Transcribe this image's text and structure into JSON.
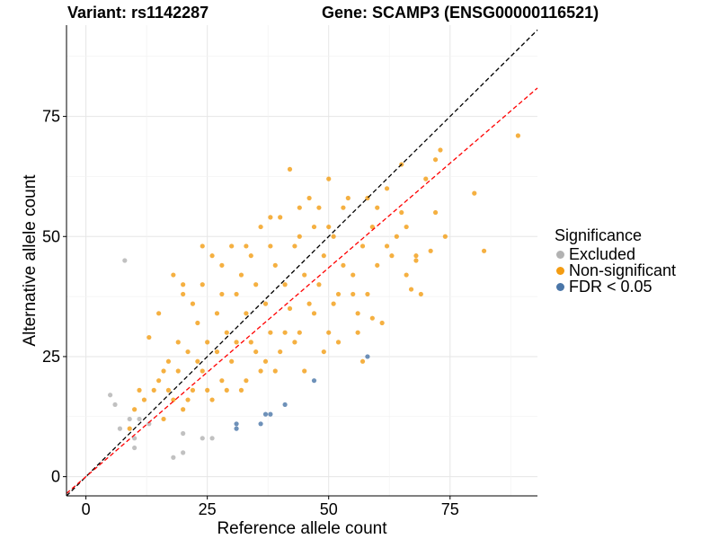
{
  "header": {
    "variant_title": "Variant: rs1142287",
    "gene_title": "Gene: SCAMP3 (ENSG00000116521)"
  },
  "legend": {
    "title": "Significance",
    "items": [
      {
        "label": "Excluded",
        "color": "#b2b2b2"
      },
      {
        "label": "Non-significant",
        "color": "#f39c12"
      },
      {
        "label": "FDR < 0.05",
        "color": "#4a76a8"
      }
    ]
  },
  "chart_data": {
    "type": "scatter",
    "title": "",
    "xlabel": "Reference allele count",
    "ylabel": "Alternative allele count",
    "xlim": [
      -4,
      93
    ],
    "ylim": [
      -4,
      94
    ],
    "xticks": [
      0,
      25,
      50,
      75
    ],
    "yticks": [
      0,
      25,
      50,
      75
    ],
    "grid": true,
    "legend_position": "right",
    "reference_lines": [
      {
        "name": "identity",
        "slope": 1,
        "intercept": 0,
        "color": "#000000",
        "style": "dashed"
      },
      {
        "name": "fit",
        "slope": 0.87,
        "intercept": 0,
        "color": "#ff0000",
        "style": "dashed"
      }
    ],
    "series": [
      {
        "name": "Excluded",
        "color": "#b2b2b2",
        "points": [
          [
            5,
            17
          ],
          [
            6,
            15
          ],
          [
            7,
            10
          ],
          [
            8,
            45
          ],
          [
            9,
            12
          ],
          [
            10,
            8
          ],
          [
            10,
            6
          ],
          [
            11,
            12
          ],
          [
            13,
            11
          ],
          [
            18,
            4
          ],
          [
            20,
            5
          ],
          [
            24,
            8
          ],
          [
            26,
            8
          ],
          [
            20,
            9
          ]
        ]
      },
      {
        "name": "FDR < 0.05",
        "color": "#4a76a8",
        "points": [
          [
            31,
            11
          ],
          [
            31,
            10
          ],
          [
            36,
            11
          ],
          [
            37,
            13
          ],
          [
            38,
            13
          ],
          [
            41,
            15
          ],
          [
            47,
            20
          ],
          [
            58,
            25
          ]
        ]
      },
      {
        "name": "Non-significant",
        "color": "#f39c12",
        "points": [
          [
            89,
            71
          ],
          [
            82,
            47
          ],
          [
            80,
            59
          ],
          [
            73,
            68
          ],
          [
            72,
            55
          ],
          [
            70,
            62
          ],
          [
            68,
            46
          ],
          [
            67,
            39
          ],
          [
            65,
            55
          ],
          [
            64,
            50
          ],
          [
            62,
            48
          ],
          [
            61,
            32
          ],
          [
            60,
            44
          ],
          [
            59,
            52
          ],
          [
            58,
            38
          ],
          [
            57,
            48
          ],
          [
            56,
            34
          ],
          [
            55,
            42
          ],
          [
            54,
            58
          ],
          [
            53,
            44
          ],
          [
            52,
            38
          ],
          [
            51,
            50
          ],
          [
            50,
            30
          ],
          [
            49,
            46
          ],
          [
            48,
            40
          ],
          [
            47,
            52
          ],
          [
            46,
            36
          ],
          [
            45,
            42
          ],
          [
            44,
            30
          ],
          [
            43,
            48
          ],
          [
            42,
            35
          ],
          [
            41,
            40
          ],
          [
            40,
            26
          ],
          [
            39,
            44
          ],
          [
            38,
            30
          ],
          [
            37,
            36
          ],
          [
            36,
            22
          ],
          [
            35,
            40
          ],
          [
            34,
            28
          ],
          [
            33,
            34
          ],
          [
            32,
            18
          ],
          [
            31,
            38
          ],
          [
            30,
            24
          ],
          [
            29,
            30
          ],
          [
            28,
            20
          ],
          [
            27,
            34
          ],
          [
            26,
            16
          ],
          [
            25,
            28
          ],
          [
            24,
            22
          ],
          [
            23,
            32
          ],
          [
            22,
            18
          ],
          [
            21,
            26
          ],
          [
            20,
            14
          ],
          [
            19,
            22
          ],
          [
            18,
            16
          ],
          [
            17,
            24
          ],
          [
            16,
            12
          ],
          [
            15,
            20
          ],
          [
            14,
            18
          ],
          [
            13,
            29
          ],
          [
            12,
            16
          ],
          [
            11,
            18
          ],
          [
            9,
            10
          ],
          [
            10,
            14
          ],
          [
            15,
            34
          ],
          [
            16,
            22
          ],
          [
            17,
            18
          ],
          [
            18,
            42
          ],
          [
            19,
            28
          ],
          [
            20,
            38
          ],
          [
            21,
            16
          ],
          [
            22,
            36
          ],
          [
            23,
            24
          ],
          [
            24,
            40
          ],
          [
            25,
            18
          ],
          [
            26,
            46
          ],
          [
            27,
            26
          ],
          [
            28,
            44
          ],
          [
            29,
            18
          ],
          [
            30,
            48
          ],
          [
            31,
            28
          ],
          [
            32,
            42
          ],
          [
            33,
            20
          ],
          [
            34,
            46
          ],
          [
            35,
            26
          ],
          [
            36,
            52
          ],
          [
            37,
            24
          ],
          [
            38,
            48
          ],
          [
            39,
            22
          ],
          [
            40,
            54
          ],
          [
            41,
            30
          ],
          [
            42,
            64
          ],
          [
            43,
            28
          ],
          [
            44,
            56
          ],
          [
            45,
            22
          ],
          [
            46,
            58
          ],
          [
            47,
            34
          ],
          [
            48,
            56
          ],
          [
            49,
            26
          ],
          [
            50,
            62
          ],
          [
            51,
            36
          ],
          [
            52,
            28
          ],
          [
            53,
            56
          ],
          [
            55,
            38
          ],
          [
            57,
            24
          ],
          [
            58,
            58
          ],
          [
            59,
            33
          ],
          [
            60,
            56
          ],
          [
            63,
            46
          ],
          [
            65,
            65
          ],
          [
            66,
            42
          ],
          [
            68,
            45
          ],
          [
            69,
            38
          ],
          [
            71,
            47
          ],
          [
            72,
            66
          ],
          [
            74,
            50
          ],
          [
            20,
            40
          ],
          [
            24,
            48
          ],
          [
            28,
            38
          ],
          [
            33,
            48
          ],
          [
            38,
            54
          ],
          [
            44,
            50
          ],
          [
            50,
            52
          ],
          [
            56,
            30
          ],
          [
            62,
            60
          ],
          [
            66,
            52
          ]
        ]
      }
    ]
  }
}
